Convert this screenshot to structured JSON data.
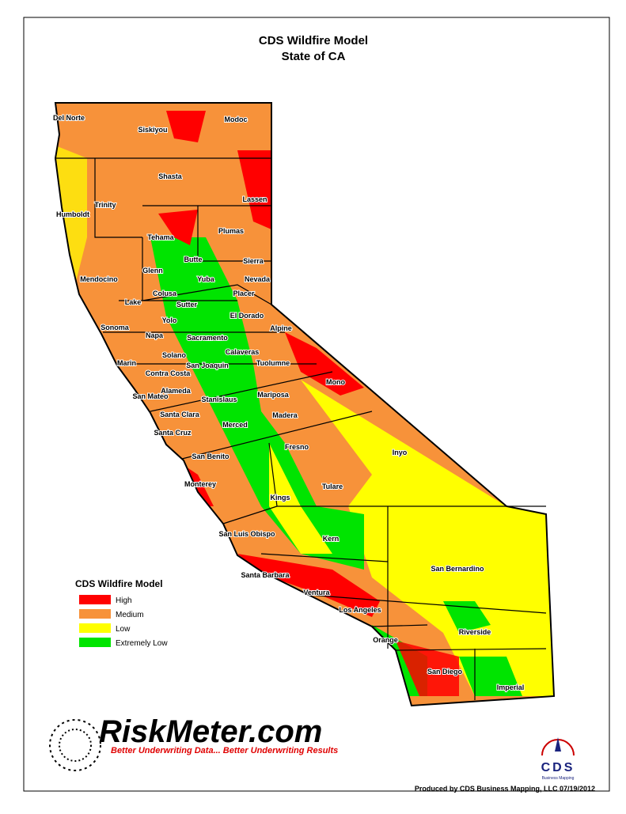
{
  "header": {
    "title": "CDS Wildfire Model",
    "subtitle": "State of CA"
  },
  "counties": [
    "Del Norte",
    "Siskiyou",
    "Modoc",
    "Humboldt",
    "Trinity",
    "Shasta",
    "Lassen",
    "Tehama",
    "Plumas",
    "Butte",
    "Sierra",
    "Glenn",
    "Mendocino",
    "Nevada",
    "Yuba",
    "Colusa",
    "Lake",
    "Sutter",
    "Placer",
    "Yolo",
    "El Dorado",
    "Alpine",
    "Sonoma",
    "Napa",
    "Sacramento",
    "Calaveras",
    "Solano",
    "Marin",
    "Contra Costa",
    "San Joaquin",
    "Tuolumne",
    "Mono",
    "Alameda",
    "San Mateo",
    "Stanislaus",
    "Mariposa",
    "Santa Clara",
    "Madera",
    "Santa Cruz",
    "Merced",
    "Fresno",
    "Inyo",
    "San Benito",
    "Monterey",
    "Tulare",
    "Kings",
    "San Luis Obispo",
    "Kern",
    "San Bernardino",
    "Santa Barbara",
    "Ventura",
    "Los Angeles",
    "Riverside",
    "Orange",
    "San Diego",
    "Imperial"
  ],
  "legend": {
    "title": "CDS Wildfire Model",
    "items": [
      {
        "label": "High",
        "color": "#ff0000"
      },
      {
        "label": "Medium",
        "color": "#f7923a"
      },
      {
        "label": "Low",
        "color": "#ffff00"
      },
      {
        "label": "Extremely Low",
        "color": "#00e400"
      }
    ]
  },
  "logo": {
    "name": "RiskMeter.com",
    "tagline": "Better Underwriting Data... Better Underwriting Results",
    "cds": "CDS",
    "cds_sub": "Business Mapping"
  },
  "footer": "Produced by CDS Business Mapping, LLC 07/19/2012"
}
